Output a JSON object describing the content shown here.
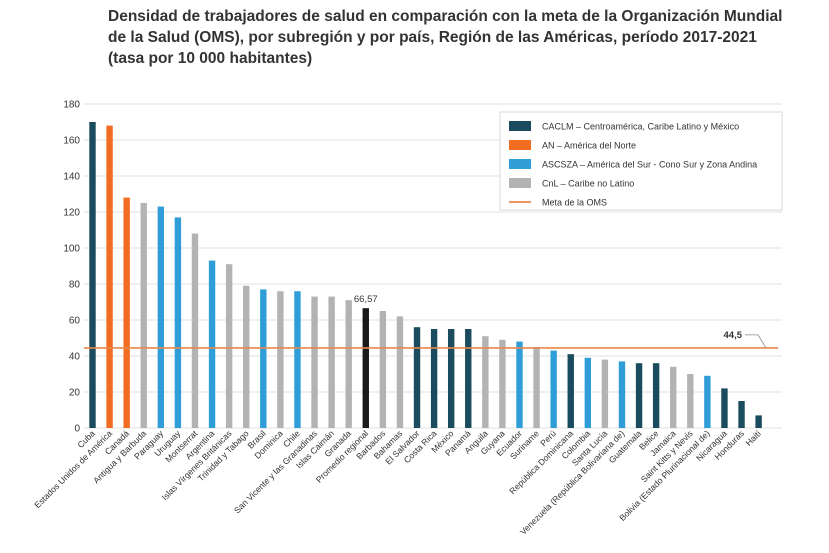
{
  "title_lines": [
    "Densidad de trabajadores de salud en comparación con la meta de la Organización Mundial",
    "de la Salud (OMS), por subregión y por país, Región de las Américas, período 2017-2021",
    "(tasa por 10 000 habitantes)"
  ],
  "chart_data": {
    "type": "bar",
    "title": "Densidad de trabajadores de salud en comparación con la meta de la Organización Mundial de la Salud (OMS), por subregión y por país, Región de las Américas, período 2017-2021 (tasa por 10 000 habitantes)",
    "xlabel": "",
    "ylabel": "",
    "ylim": [
      0,
      180
    ],
    "yticks": [
      0,
      20,
      40,
      60,
      80,
      100,
      120,
      140,
      160,
      180
    ],
    "grid": true,
    "legend_position": "top-right",
    "legend": [
      {
        "key": "CACLM",
        "label": "CACLM – Centroamérica, Caribe Latino y México",
        "color": "#1b4b5e",
        "kind": "bar"
      },
      {
        "key": "AN",
        "label": "AN – América del Norte",
        "color": "#f26c22",
        "kind": "bar"
      },
      {
        "key": "ASCSZA",
        "label": "ASCSZA – América del Sur - Cono Sur y Zona Andina",
        "color": "#2f9ed8",
        "kind": "bar"
      },
      {
        "key": "CnL",
        "label": "CnL – Caribe no Latino",
        "color": "#b3b3b3",
        "kind": "bar"
      },
      {
        "key": "OMS",
        "label": "Meta de la OMS",
        "color": "#e9874a",
        "kind": "line"
      }
    ],
    "group_colors": {
      "CACLM": "#1b4b5e",
      "AN": "#f26c22",
      "ASCSZA": "#2f9ed8",
      "CnL": "#b3b3b3",
      "Promedio": "#1a1a1a"
    },
    "reference_line": {
      "value": 44.5,
      "label": "44,5",
      "color": "#e9874a"
    },
    "average_label": "66,57",
    "categories": [
      "Cuba",
      "Estados Unidos de América",
      "Canadá",
      "Antigua y Barbuda",
      "Paraguay",
      "Uruguay",
      "Montserrat",
      "Argentina",
      "Islas Vírgenes Británicas",
      "Trinidad y Tabago",
      "Brasil",
      "Dominica",
      "Chile",
      "San Vicente y las Granadinas",
      "Islas Caimán",
      "Granada",
      "Promedio regional",
      "Barbados",
      "Bahamas",
      "El Salvador",
      "Costa Rica",
      "México",
      "Panamá",
      "Anguila",
      "Guyana",
      "Ecuador",
      "Suriname",
      "Perú",
      "República Dominicana",
      "Colombia",
      "Santa Lucía",
      "Venezuela (República Bolivariana de)",
      "Guatemala",
      "Belice",
      "Jamaica",
      "Saint Kitts y Nevis",
      "Bolivia (Estado Plurinacional de)",
      "Nicaragua",
      "Honduras",
      "Haití"
    ],
    "values": [
      170,
      168,
      128,
      125,
      123,
      117,
      108,
      93,
      91,
      79,
      77,
      76,
      76,
      73,
      73,
      71,
      66.57,
      65,
      62,
      56,
      55,
      55,
      55,
      51,
      49,
      48,
      45,
      43,
      41,
      39,
      38,
      37,
      36,
      36,
      34,
      30,
      29,
      22,
      15,
      7
    ],
    "groups": [
      "CACLM",
      "AN",
      "AN",
      "CnL",
      "ASCSZA",
      "ASCSZA",
      "CnL",
      "ASCSZA",
      "CnL",
      "CnL",
      "ASCSZA",
      "CnL",
      "ASCSZA",
      "CnL",
      "CnL",
      "CnL",
      "Promedio",
      "CnL",
      "CnL",
      "CACLM",
      "CACLM",
      "CACLM",
      "CACLM",
      "CnL",
      "CnL",
      "ASCSZA",
      "CnL",
      "ASCSZA",
      "CACLM",
      "ASCSZA",
      "CnL",
      "ASCSZA",
      "CACLM",
      "CACLM",
      "CnL",
      "CnL",
      "ASCSZA",
      "CACLM",
      "CACLM",
      "CACLM"
    ]
  }
}
